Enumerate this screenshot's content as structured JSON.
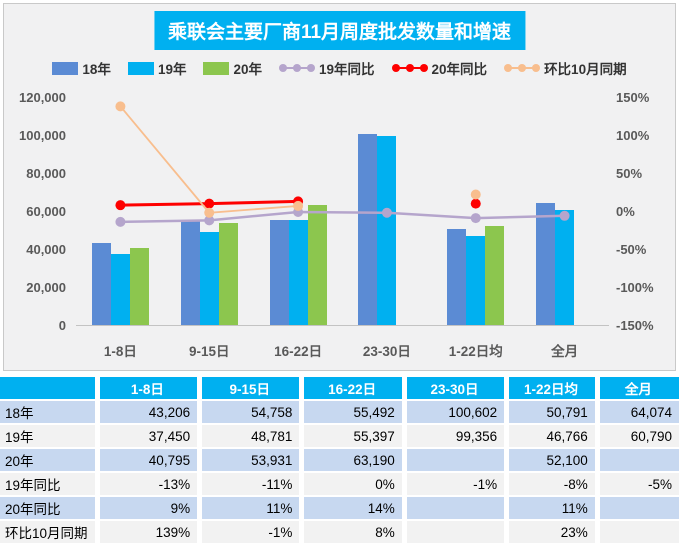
{
  "title": "乘联会主要厂商11月周度批发数量和增速",
  "colors": {
    "accent_cyan": "#00b0f0",
    "bar_blue": "#5b8bd4",
    "bar_cyan": "#00b0f0",
    "bar_green": "#8cc64e",
    "line_purple": "#b5a5cc",
    "line_red": "#fe0000",
    "line_orange": "#f8be8e",
    "panel_bg": "#f1f1f2",
    "row_blue": "#c7d8f0",
    "row_gray": "#f2f2f2"
  },
  "legend": [
    {
      "label": "18年",
      "type": "bar",
      "color": "#5b8bd4"
    },
    {
      "label": "19年",
      "type": "bar",
      "color": "#00b0f0"
    },
    {
      "label": "20年",
      "type": "bar",
      "color": "#8cc64e"
    },
    {
      "label": "19年同比",
      "type": "line",
      "color": "#b5a5cc"
    },
    {
      "label": "20年同比",
      "type": "line",
      "color": "#fe0000"
    },
    {
      "label": "环比10月同期",
      "type": "line",
      "color": "#f8be8e"
    }
  ],
  "chart_data": {
    "type": "bar+line combo",
    "title": "乘联会主要厂商11月周度批发数量和增速",
    "categories": [
      "1-8日",
      "9-15日",
      "16-22日",
      "23-30日",
      "1-22日均",
      "全月"
    ],
    "bar_series": [
      {
        "name": "18年",
        "color": "#5b8bd4",
        "values": [
          43206,
          54758,
          55492,
          100602,
          50791,
          64074
        ]
      },
      {
        "name": "19年",
        "color": "#00b0f0",
        "values": [
          37450,
          48781,
          55397,
          99356,
          46766,
          60790
        ]
      },
      {
        "name": "20年",
        "color": "#8cc64e",
        "values": [
          40795,
          53931,
          63190,
          null,
          52100,
          null
        ]
      }
    ],
    "line_series": [
      {
        "name": "19年同比",
        "color": "#b5a5cc",
        "values": [
          -13,
          -11,
          0,
          -1,
          -8,
          -5
        ]
      },
      {
        "name": "20年同比",
        "color": "#fe0000",
        "values": [
          9,
          11,
          14,
          null,
          11,
          null
        ]
      },
      {
        "name": "环比10月同期",
        "color": "#f8be8e",
        "values": [
          139,
          -1,
          8,
          null,
          23,
          null
        ]
      }
    ],
    "left_axis": {
      "min": 0,
      "max": 120000,
      "step": 20000,
      "ticks": [
        "0",
        "20,000",
        "40,000",
        "60,000",
        "80,000",
        "100,000",
        "120,000"
      ]
    },
    "right_axis": {
      "min": -150,
      "max": 150,
      "step": 50,
      "ticks": [
        "-150%",
        "-100%",
        "-50%",
        "0%",
        "50%",
        "100%",
        "150%"
      ]
    },
    "grid": "off",
    "legend_position": "top"
  },
  "table": {
    "columns": [
      "",
      "1-8日",
      "9-15日",
      "16-22日",
      "23-30日",
      "1-22日均",
      "全月"
    ],
    "rows": [
      {
        "label": "18年",
        "cells": [
          "43,206",
          "54,758",
          "55,492",
          "100,602",
          "50,791",
          "64,074"
        ]
      },
      {
        "label": "19年",
        "cells": [
          "37,450",
          "48,781",
          "55,397",
          "99,356",
          "46,766",
          "60,790"
        ]
      },
      {
        "label": "20年",
        "cells": [
          "40,795",
          "53,931",
          "63,190",
          "",
          "52,100",
          ""
        ]
      },
      {
        "label": "19年同比",
        "cells": [
          "-13%",
          "-11%",
          "0%",
          "-1%",
          "-8%",
          "-5%"
        ]
      },
      {
        "label": "20年同比",
        "cells": [
          "9%",
          "11%",
          "14%",
          "",
          "11%",
          ""
        ]
      },
      {
        "label": "环比10月同期",
        "cells": [
          "139%",
          "-1%",
          "8%",
          "",
          "23%",
          ""
        ]
      }
    ]
  }
}
